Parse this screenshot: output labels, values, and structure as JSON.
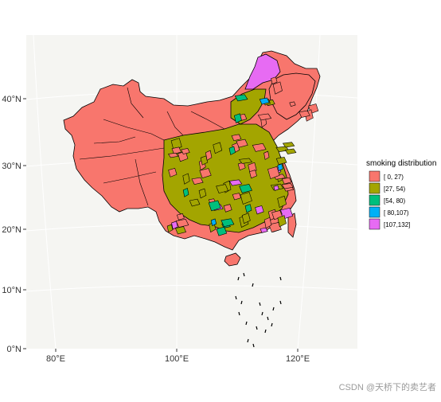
{
  "chart_data": {
    "type": "choropleth-map",
    "title": "",
    "xlabel": "",
    "ylabel": "",
    "x_ticks": [
      "80°E",
      "100°E",
      "120°E"
    ],
    "y_ticks": [
      "0°N",
      "10°N",
      "20°N",
      "30°N",
      "40°N"
    ],
    "grid": true,
    "legend": {
      "title": "smoking distribution",
      "placement": "right",
      "items": [
        {
          "label": "[ 0, 27)",
          "color": "#F8766D"
        },
        {
          "label": "[27, 54)",
          "color": "#A3A500"
        },
        {
          "label": "[54, 80)",
          "color": "#00BF7D"
        },
        {
          "label": "[ 80,107)",
          "color": "#00B0F6"
        },
        {
          "label": "[107,132]",
          "color": "#E76BF3"
        }
      ]
    }
  },
  "watermark": "CSDN @天桥下的卖艺者"
}
